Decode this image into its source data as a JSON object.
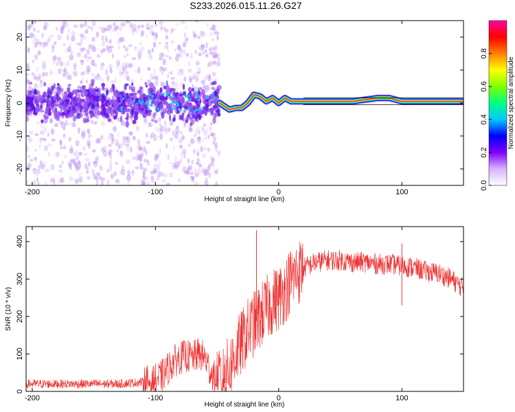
{
  "figure": {
    "title": "S233.2026.015.11.26.G27"
  },
  "chart_data": [
    {
      "type": "heatmap",
      "title": "",
      "xlabel": "Height of straight line (km)",
      "ylabel": "Frequency (Hz)",
      "xlim": [
        -205,
        150
      ],
      "ylim": [
        -25,
        25
      ],
      "xticks": [
        -200,
        -100,
        0,
        100
      ],
      "yticks": [
        -20,
        -10,
        0,
        10,
        20
      ],
      "colorbar": {
        "label": "Normalized spectral amplitude",
        "range": [
          0,
          1
        ],
        "ticks": [
          0.0,
          0.2,
          0.4,
          0.6,
          0.8
        ],
        "colormap": [
          "#ffffff",
          "#d9b3ff",
          "#8000ff",
          "#0000ff",
          "#00c8ff",
          "#00ff80",
          "#80ff00",
          "#ffff00",
          "#ff8000",
          "#ff0000",
          "#ff00a0"
        ]
      },
      "ridge": {
        "description_points_x": [
          -200,
          -150,
          -100,
          -60,
          -48,
          -40,
          -35,
          -30,
          -25,
          -20,
          -15,
          -10,
          -5,
          0,
          5,
          10,
          20,
          40,
          60,
          80,
          90,
          100,
          120,
          150
        ],
        "frequency_hz": [
          0.5,
          0.5,
          1.0,
          0.5,
          0,
          -2,
          -1.5,
          -1.5,
          0,
          2.5,
          2.0,
          0.5,
          1.5,
          0,
          1.5,
          0.5,
          0.5,
          0.5,
          0.5,
          1.5,
          1.5,
          0.5,
          0.5,
          0.5
        ]
      },
      "noise_region_km": [
        -205,
        -48
      ],
      "coherent_region_km": [
        -48,
        150
      ]
    },
    {
      "type": "line",
      "title": "",
      "xlabel": "Height of straight line (km)",
      "ylabel": "SNR (10 * v/v)",
      "xlim": [
        -205,
        150
      ],
      "ylim": [
        0,
        440
      ],
      "xticks": [
        -200,
        -100,
        0,
        100
      ],
      "yticks": [
        0,
        100,
        200,
        300,
        400
      ],
      "color": "#ee3333",
      "series": [
        {
          "name": "SNR",
          "x": [
            -205,
            -190,
            -170,
            -150,
            -130,
            -110,
            -100,
            -95,
            -90,
            -85,
            -80,
            -75,
            -70,
            -65,
            -60,
            -55,
            -50,
            -45,
            -40,
            -35,
            -30,
            -25,
            -20,
            -15,
            -10,
            -5,
            0,
            5,
            10,
            20,
            30,
            40,
            50,
            60,
            70,
            80,
            90,
            100,
            110,
            120,
            130,
            140,
            150
          ],
          "y": [
            20,
            20,
            20,
            20,
            20,
            25,
            30,
            40,
            60,
            80,
            90,
            95,
            90,
            100,
            90,
            50,
            30,
            40,
            60,
            100,
            130,
            160,
            180,
            200,
            220,
            240,
            250,
            270,
            300,
            330,
            345,
            350,
            350,
            345,
            345,
            340,
            340,
            335,
            330,
            320,
            315,
            300,
            275
          ]
        }
      ],
      "spikes": [
        {
          "x": -18,
          "y": 430
        },
        {
          "x": 100,
          "y": 395
        },
        {
          "x": 100,
          "y": 230
        }
      ]
    }
  ]
}
